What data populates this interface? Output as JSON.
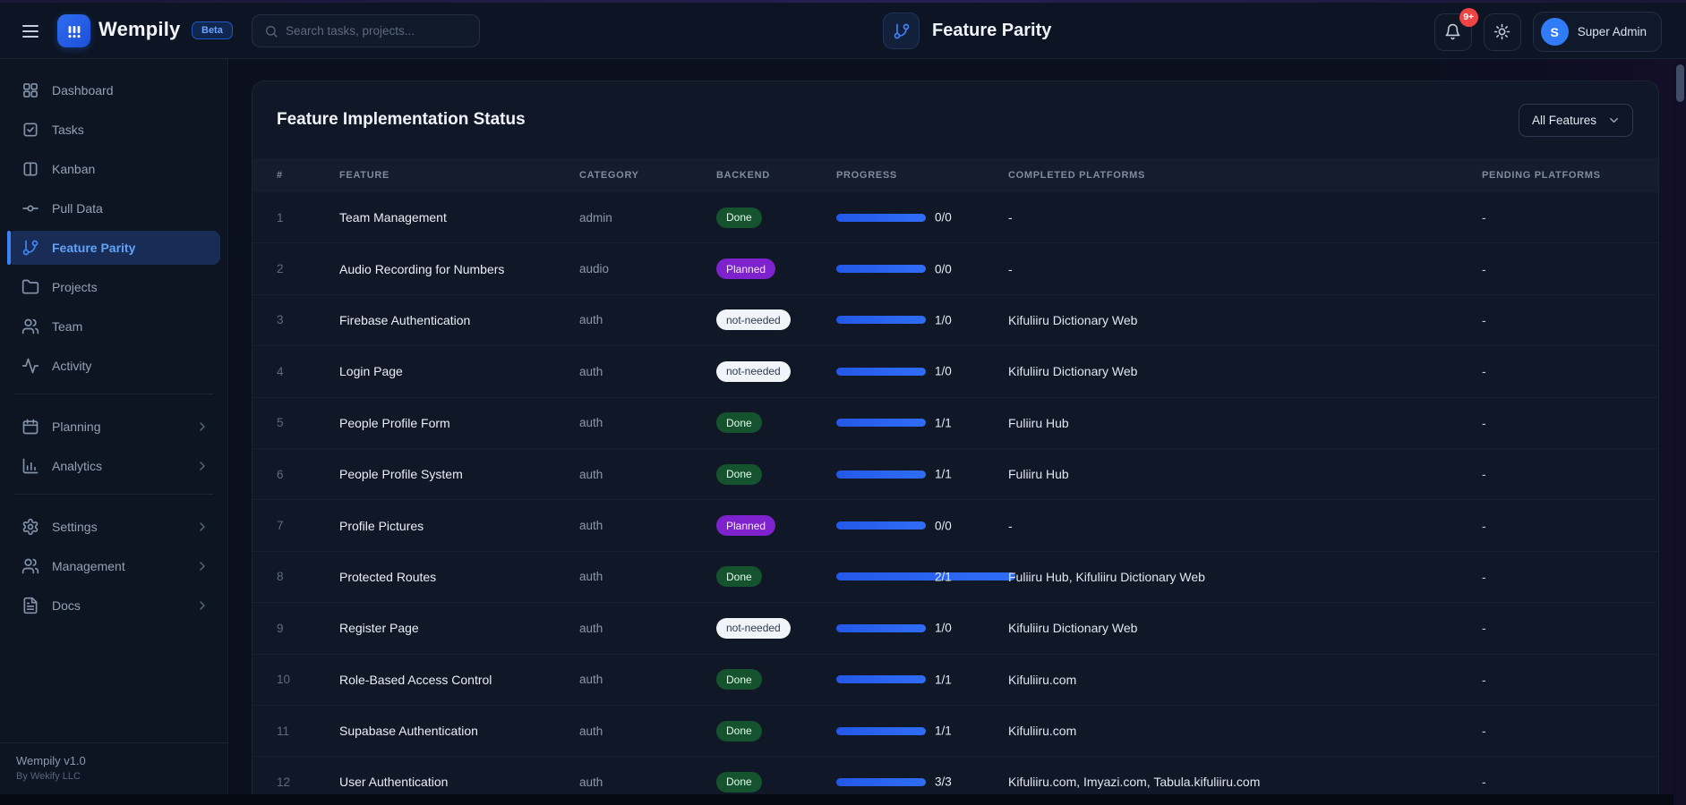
{
  "colors": {
    "accent_blue": "#2f6df6",
    "progress_bar": "#2b66f0",
    "done_badge_bg": "#14532d",
    "planned_badge_bg": "#7e22ce",
    "not_needed_badge_bg": "#f1f5f9",
    "notification_badge": "#ef4444",
    "active_nav_bg": "#182c55"
  },
  "header": {
    "brand": "Wempily",
    "beta_badge": "Beta",
    "search_placeholder": "Search tasks, projects...",
    "page_title": "Feature Parity",
    "notification_count": "9+",
    "user_initial": "S",
    "user_name": "Super Admin"
  },
  "sidebar": {
    "sections": [
      [
        {
          "label": "Dashboard",
          "icon": "dashboard"
        },
        {
          "label": "Tasks",
          "icon": "task-check"
        },
        {
          "label": "Kanban",
          "icon": "kanban"
        },
        {
          "label": "Pull Data",
          "icon": "git-commit"
        },
        {
          "label": "Feature Parity",
          "icon": "git-branch",
          "active": true
        },
        {
          "label": "Projects",
          "icon": "folder"
        },
        {
          "label": "Team",
          "icon": "users"
        },
        {
          "label": "Activity",
          "icon": "activity"
        }
      ],
      [
        {
          "label": "Planning",
          "icon": "calendar",
          "chevron": true
        },
        {
          "label": "Analytics",
          "icon": "bar-chart",
          "chevron": true
        }
      ],
      [
        {
          "label": "Settings",
          "icon": "gear",
          "chevron": true
        },
        {
          "label": "Management",
          "icon": "users",
          "chevron": true
        },
        {
          "label": "Docs",
          "icon": "file-text",
          "chevron": true
        }
      ]
    ],
    "footer_title": "Wempily v1.0",
    "footer_sub": "By Wekify LLC"
  },
  "main": {
    "title": "Feature Implementation Status",
    "filter_label": "All Features",
    "table": {
      "columns": [
        "#",
        "FEATURE",
        "CATEGORY",
        "BACKEND",
        "PROGRESS",
        "COMPLETED PLATFORMS",
        "PENDING PLATFORMS"
      ],
      "rows": [
        {
          "num": "1",
          "feature": "Team Management",
          "category": "admin",
          "backend": "Done",
          "backend_type": "done",
          "progress": "0/0",
          "progress_ratio": 1,
          "completed": "-",
          "pending": "-"
        },
        {
          "num": "2",
          "feature": "Audio Recording for Numbers",
          "category": "audio",
          "backend": "Planned",
          "backend_type": "planned",
          "progress": "0/0",
          "progress_ratio": 1,
          "completed": "-",
          "pending": "-"
        },
        {
          "num": "3",
          "feature": "Firebase Authentication",
          "category": "auth",
          "backend": "not-needed",
          "backend_type": "not-needed",
          "progress": "1/0",
          "progress_ratio": 1,
          "completed": "Kifuliiru Dictionary Web",
          "pending": "-"
        },
        {
          "num": "4",
          "feature": "Login Page",
          "category": "auth",
          "backend": "not-needed",
          "backend_type": "not-needed",
          "progress": "1/0",
          "progress_ratio": 1,
          "completed": "Kifuliiru Dictionary Web",
          "pending": "-"
        },
        {
          "num": "5",
          "feature": "People Profile Form",
          "category": "auth",
          "backend": "Done",
          "backend_type": "done",
          "progress": "1/1",
          "progress_ratio": 1,
          "completed": "Fuliiru Hub",
          "pending": "-"
        },
        {
          "num": "6",
          "feature": "People Profile System",
          "category": "auth",
          "backend": "Done",
          "backend_type": "done",
          "progress": "1/1",
          "progress_ratio": 1,
          "completed": "Fuliiru Hub",
          "pending": "-"
        },
        {
          "num": "7",
          "feature": "Profile Pictures",
          "category": "auth",
          "backend": "Planned",
          "backend_type": "planned",
          "progress": "0/0",
          "progress_ratio": 1,
          "completed": "-",
          "pending": "-"
        },
        {
          "num": "8",
          "feature": "Protected Routes",
          "category": "auth",
          "backend": "Done",
          "backend_type": "done",
          "progress": "2/1",
          "progress_ratio": 2,
          "completed": "Fuliiru Hub, Kifuliiru Dictionary Web",
          "pending": "-"
        },
        {
          "num": "9",
          "feature": "Register Page",
          "category": "auth",
          "backend": "not-needed",
          "backend_type": "not-needed",
          "progress": "1/0",
          "progress_ratio": 1,
          "completed": "Kifuliiru Dictionary Web",
          "pending": "-"
        },
        {
          "num": "10",
          "feature": "Role-Based Access Control",
          "category": "auth",
          "backend": "Done",
          "backend_type": "done",
          "progress": "1/1",
          "progress_ratio": 1,
          "completed": "Kifuliiru.com",
          "pending": "-"
        },
        {
          "num": "11",
          "feature": "Supabase Authentication",
          "category": "auth",
          "backend": "Done",
          "backend_type": "done",
          "progress": "1/1",
          "progress_ratio": 1,
          "completed": "Kifuliiru.com",
          "pending": "-"
        },
        {
          "num": "12",
          "feature": "User Authentication",
          "category": "auth",
          "backend": "Done",
          "backend_type": "done",
          "progress": "3/3",
          "progress_ratio": 1,
          "completed": "Kifuliiru.com, Imyazi.com, Tabula.kifuliiru.com",
          "pending": "-"
        }
      ]
    }
  }
}
